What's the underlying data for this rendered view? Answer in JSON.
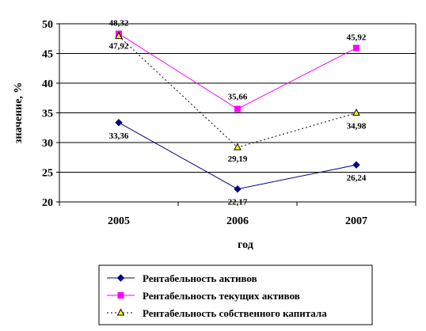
{
  "chart_data": {
    "type": "line",
    "categories": [
      "2005",
      "2006",
      "2007"
    ],
    "xlabel": "год",
    "ylabel": "значение, %",
    "ylim": [
      20,
      50
    ],
    "yticks": [
      "20",
      "25",
      "30",
      "35",
      "40",
      "45",
      "50"
    ],
    "grid": "horizontal",
    "legend_position": "bottom",
    "series": [
      {
        "name": "Рентабельность активов",
        "values": [
          33.36,
          22.17,
          26.24
        ],
        "labels": [
          "33,36",
          "22,17",
          "26,24"
        ],
        "color": "#000080",
        "line_style": "solid",
        "marker": "diamond"
      },
      {
        "name": "Рентабельность текущих активов",
        "values": [
          48.32,
          35.66,
          45.92
        ],
        "labels": [
          "48,32",
          "35,66",
          "45,92"
        ],
        "color": "#FF00FF",
        "line_style": "solid",
        "marker": "square"
      },
      {
        "name": "Рентабельность собственного капитала",
        "values": [
          47.92,
          29.19,
          34.98
        ],
        "labels": [
          "47,92",
          "29,19",
          "34,98"
        ],
        "color": "#000000",
        "marker_fill": "#FFFF00",
        "line_style": "dotted",
        "marker": "triangle"
      }
    ]
  }
}
